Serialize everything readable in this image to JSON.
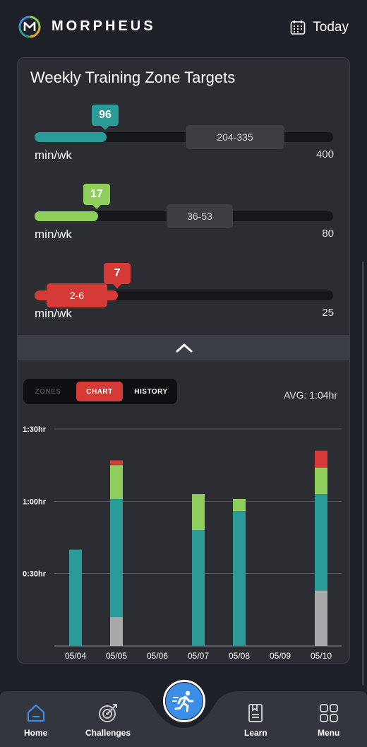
{
  "header": {
    "brand": "MORPHEUS",
    "logo_icon": "morpheus-logo",
    "today_label": "Today",
    "calendar_icon": "calendar-icon"
  },
  "card": {
    "title": "Weekly Training Zone Targets",
    "zones": [
      {
        "current": "96",
        "current_value": 96,
        "range": "204-335",
        "range_low": 204,
        "range_high": 335,
        "max": "400",
        "max_value": 400,
        "unit": "min/wk",
        "color": "#2b9b98"
      },
      {
        "current": "17",
        "current_value": 17,
        "range": "36-53",
        "range_low": 36,
        "range_high": 53,
        "max": "80",
        "max_value": 80,
        "unit": "min/wk",
        "color": "#8fce5a"
      },
      {
        "current": "7",
        "current_value": 7,
        "range": "2-6",
        "range_low": 2,
        "range_high": 6,
        "max": "25",
        "max_value": 25,
        "unit": "min/wk",
        "color": "#d63a36"
      }
    ],
    "collapse_icon": "chevron-up-icon",
    "tabs": [
      {
        "label": "ZONES",
        "active": false
      },
      {
        "label": "CHART",
        "active": true
      },
      {
        "label": "HISTORY",
        "active": false
      }
    ],
    "avg": "AVG: 1:04hr"
  },
  "chart_data": {
    "type": "bar",
    "stacked": true,
    "categories": [
      "05/04",
      "05/05",
      "05/06",
      "05/07",
      "05/08",
      "05/09",
      "05/10"
    ],
    "y_ticks": [
      "0:30hr",
      "1:00hr",
      "1:30hr"
    ],
    "y_tick_values": [
      30,
      60,
      90
    ],
    "ylim": [
      0,
      90
    ],
    "grid": true,
    "series": [
      {
        "color": "#a9a9ab",
        "values": [
          0,
          12,
          0,
          0,
          0,
          0,
          23
        ]
      },
      {
        "color": "#2b9b98",
        "values": [
          40,
          49,
          0,
          48,
          56,
          0,
          40
        ]
      },
      {
        "color": "#8fce5a",
        "values": [
          0,
          14,
          0,
          15,
          5,
          0,
          11
        ]
      },
      {
        "color": "#d63a36",
        "values": [
          0,
          2,
          0,
          0,
          0,
          0,
          7
        ]
      }
    ]
  },
  "nav": {
    "items": [
      {
        "label": "Home",
        "icon": "home-icon",
        "color": "#3a8ee8"
      },
      {
        "label": "Challenges",
        "icon": "target-icon"
      },
      {
        "label": "Learn",
        "icon": "book-icon"
      },
      {
        "label": "Menu",
        "icon": "grid-icon"
      }
    ],
    "fab_icon": "running-icon"
  }
}
